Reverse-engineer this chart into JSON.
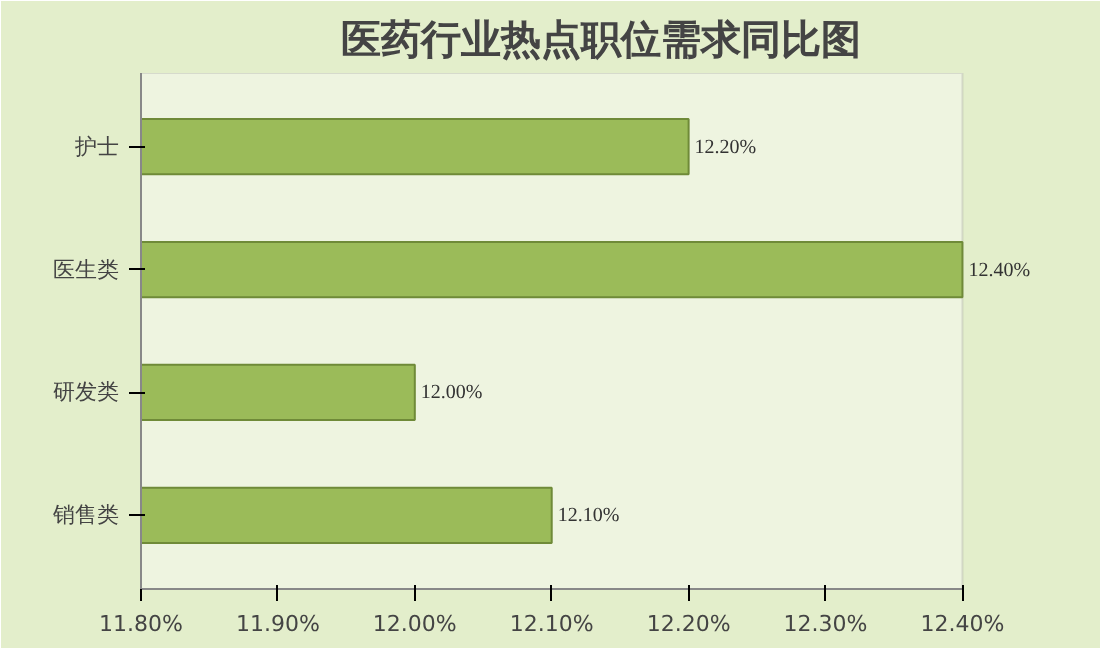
{
  "chart_data": {
    "type": "bar",
    "orientation": "horizontal",
    "title": "医药行业热点职位需求同比图",
    "categories": [
      "护士",
      "医生类",
      "研发类",
      "销售类"
    ],
    "values": [
      12.2,
      12.4,
      12.0,
      12.1
    ],
    "value_labels": [
      "12.20%",
      "12.40%",
      "12.00%",
      "12.10%"
    ],
    "color": "#9bbb59",
    "xlim": [
      11.8,
      12.4
    ],
    "xticks": [
      {
        "value": 11.8,
        "label": "11.80%"
      },
      {
        "value": 11.9,
        "label": "11.90%"
      },
      {
        "value": 12.0,
        "label": "12.00%"
      },
      {
        "value": 12.1,
        "label": "12.10%"
      },
      {
        "value": 12.2,
        "label": "12.20%"
      },
      {
        "value": 12.3,
        "label": "12.30%"
      },
      {
        "value": 12.4,
        "label": "12.40%"
      }
    ]
  }
}
